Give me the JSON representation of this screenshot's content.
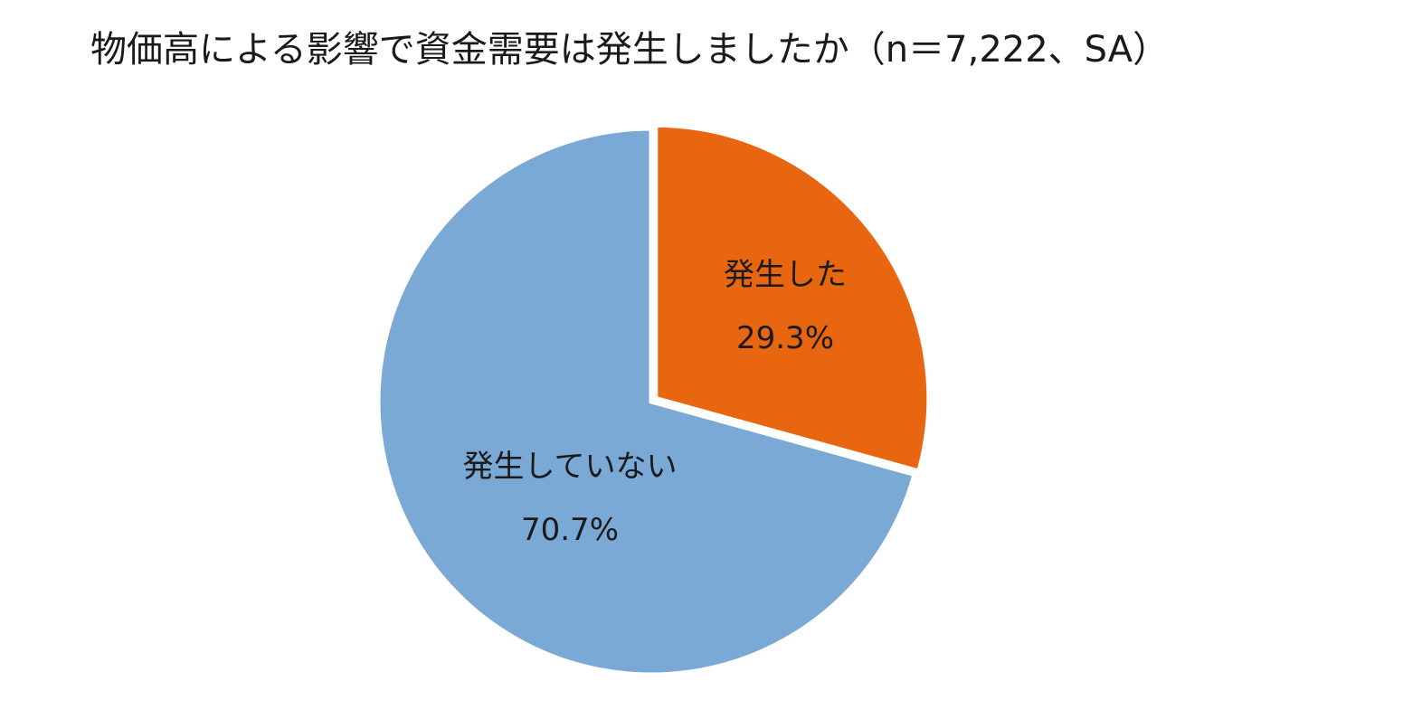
{
  "chart_data": {
    "type": "pie",
    "title": "物価高による影響で資金需要は発生しましたか（n＝7,222、SA）",
    "slices": [
      {
        "label": "発生した",
        "value": 29.3,
        "value_label": "29.3%",
        "color": "#E96611"
      },
      {
        "label": "発生していない",
        "value": 70.7,
        "value_label": "70.7%",
        "color": "#7BA9D5"
      }
    ],
    "start_angle_deg": 0,
    "direction": "clockwise",
    "legend": "none",
    "labels_inside": true
  }
}
